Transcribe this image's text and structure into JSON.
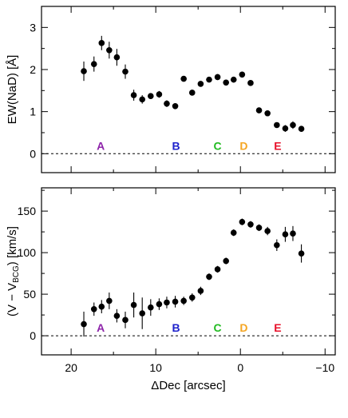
{
  "chart_data": [
    {
      "type": "scatter",
      "ylabel": "EW(NaD) [Å]",
      "xlim": [
        23.5,
        -11.2
      ],
      "ylim": [
        -0.45,
        3.5
      ],
      "yticks": [
        0,
        1,
        2,
        3
      ],
      "xticks": [
        20,
        10,
        0,
        -10
      ],
      "zero_line": true,
      "regions": [
        {
          "label": "A",
          "x": 16.5,
          "color": "#8e24aa"
        },
        {
          "label": "B",
          "x": 7.6,
          "color": "#1e22cc"
        },
        {
          "label": "C",
          "x": 2.7,
          "color": "#22bb22"
        },
        {
          "label": "D",
          "x": -0.4,
          "color": "#f5a623"
        },
        {
          "label": "E",
          "x": -4.4,
          "color": "#e8102a"
        }
      ],
      "x": [
        18.5,
        17.3,
        16.4,
        15.5,
        14.6,
        13.6,
        12.6,
        11.6,
        10.6,
        9.6,
        8.7,
        7.7,
        6.7,
        5.7,
        4.7,
        3.7,
        2.7,
        1.7,
        0.8,
        -0.2,
        -1.2,
        -2.2,
        -3.2,
        -4.3,
        -5.3,
        -6.2,
        -7.2
      ],
      "y": [
        1.96,
        2.13,
        2.63,
        2.46,
        2.29,
        1.95,
        1.39,
        1.29,
        1.37,
        1.41,
        1.19,
        1.13,
        1.78,
        1.45,
        1.66,
        1.76,
        1.82,
        1.69,
        1.76,
        1.88,
        1.68,
        1.03,
        0.96,
        0.68,
        0.6,
        0.68,
        0.59
      ],
      "yerr": [
        0.23,
        0.18,
        0.17,
        0.2,
        0.2,
        0.17,
        0.13,
        0.1,
        0.07,
        0.08,
        0.08,
        0.06,
        0.05,
        0.05,
        0.05,
        0.05,
        0.07,
        0.05,
        0.07,
        0.05,
        0.06,
        0.05,
        0.06,
        0.06,
        0.08,
        0.09,
        0.07
      ]
    },
    {
      "type": "scatter",
      "ylabel": "(V − V",
      "ylabel_sub": "BCG",
      "ylabel_unit": ") [km/s]",
      "xlabel": "ΔDec [arcsec]",
      "xlim": [
        23.5,
        -11.2
      ],
      "ylim": [
        -23,
        178
      ],
      "yticks": [
        0,
        50,
        100,
        150
      ],
      "xticks": [
        20,
        10,
        0,
        -10
      ],
      "zero_line": true,
      "regions": [
        {
          "label": "A",
          "x": 16.5,
          "color": "#8e24aa"
        },
        {
          "label": "B",
          "x": 7.6,
          "color": "#1e22cc"
        },
        {
          "label": "C",
          "x": 2.7,
          "color": "#22bb22"
        },
        {
          "label": "D",
          "x": -0.4,
          "color": "#f5a623"
        },
        {
          "label": "E",
          "x": -4.4,
          "color": "#e8102a"
        }
      ],
      "x": [
        18.5,
        17.3,
        16.4,
        15.5,
        14.6,
        13.6,
        12.6,
        11.6,
        10.6,
        9.6,
        8.7,
        7.7,
        6.7,
        5.7,
        4.7,
        3.7,
        2.7,
        1.7,
        0.8,
        -0.2,
        -1.2,
        -2.2,
        -3.2,
        -4.3,
        -5.3,
        -6.2,
        -7.2
      ],
      "y": [
        14,
        32,
        35,
        42,
        24,
        19,
        37,
        27,
        34,
        38,
        40,
        41,
        42,
        46,
        54,
        71,
        80,
        90,
        124,
        137,
        134,
        130,
        126,
        109,
        122,
        123,
        99
      ],
      "yerr": [
        15,
        8,
        8,
        10,
        8,
        10,
        15,
        19,
        10,
        7,
        7,
        7,
        5,
        5,
        5,
        4,
        4,
        4,
        4,
        4,
        4,
        4,
        5,
        7,
        9,
        9,
        11
      ]
    }
  ]
}
